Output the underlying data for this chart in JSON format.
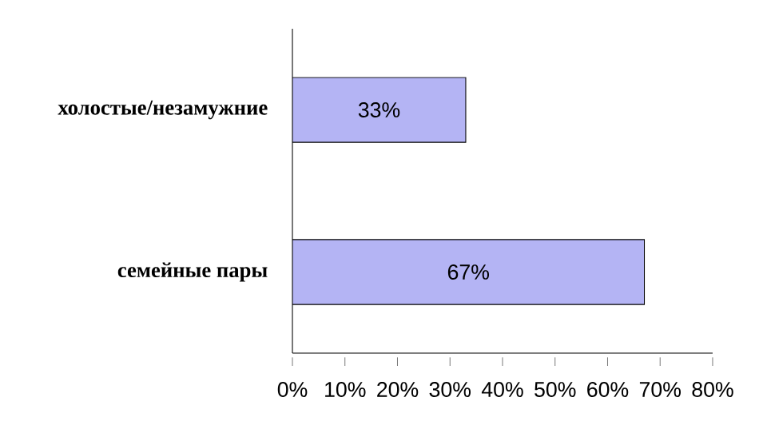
{
  "chart_data": {
    "type": "bar",
    "orientation": "horizontal",
    "categories": [
      "холостые/незамужние",
      "семейные пары"
    ],
    "values": [
      33,
      67
    ],
    "value_labels": [
      "33%",
      "67%"
    ],
    "color": "#b4b4f4",
    "xlim": [
      0,
      80
    ],
    "xticks": [
      {
        "value": 0,
        "label": "0%"
      },
      {
        "value": 10,
        "label": "10%"
      },
      {
        "value": 20,
        "label": "20%"
      },
      {
        "value": 30,
        "label": "30%"
      },
      {
        "value": 40,
        "label": "40%"
      },
      {
        "value": 50,
        "label": "50%"
      },
      {
        "value": 60,
        "label": "60%"
      },
      {
        "value": 70,
        "label": "70%"
      },
      {
        "value": 80,
        "label": "80%"
      }
    ],
    "grid": false
  }
}
